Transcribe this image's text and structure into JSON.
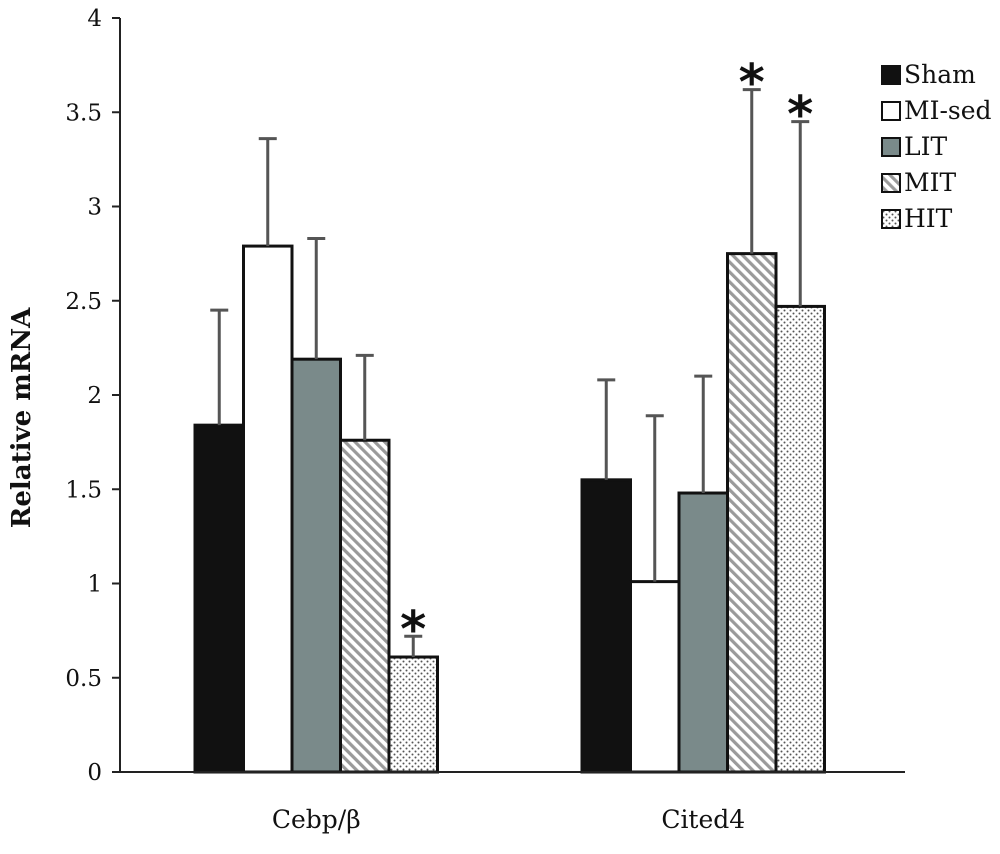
{
  "chart_data": {
    "type": "bar",
    "title": "",
    "xlabel": "",
    "ylabel": "Relative mRNA",
    "ylim": [
      0,
      4
    ],
    "yticks": [
      "0",
      "0.5",
      "1",
      "1.5",
      "2",
      "2.5",
      "3",
      "3.5",
      "4"
    ],
    "grid": false,
    "legend_position": "top-right",
    "categories": [
      "Cebp/β",
      "Cited4"
    ],
    "series": [
      {
        "name": "Sham",
        "values": [
          1.84,
          1.55
        ],
        "errors": [
          0.61,
          0.53
        ],
        "significant": [
          false,
          false
        ],
        "fill": "solid",
        "color": "#111111"
      },
      {
        "name": "MI-sed",
        "values": [
          2.79,
          1.01
        ],
        "errors": [
          0.57,
          0.88
        ],
        "significant": [
          false,
          false
        ],
        "fill": "solid",
        "color": "#ffffff"
      },
      {
        "name": "LIT",
        "values": [
          2.19,
          1.48
        ],
        "errors": [
          0.64,
          0.62
        ],
        "significant": [
          false,
          false
        ],
        "fill": "solid",
        "color": "#7a8a8a"
      },
      {
        "name": "MIT",
        "values": [
          1.76,
          2.75
        ],
        "errors": [
          0.45,
          0.87
        ],
        "significant": [
          false,
          true
        ],
        "fill": "diagonal-stripes",
        "color": "#9a9a9a"
      },
      {
        "name": "HIT",
        "values": [
          0.61,
          2.47
        ],
        "errors": [
          0.11,
          0.98
        ],
        "significant": [
          true,
          true
        ],
        "fill": "dots",
        "color": "#555555"
      }
    ],
    "significance_marker": "*"
  }
}
